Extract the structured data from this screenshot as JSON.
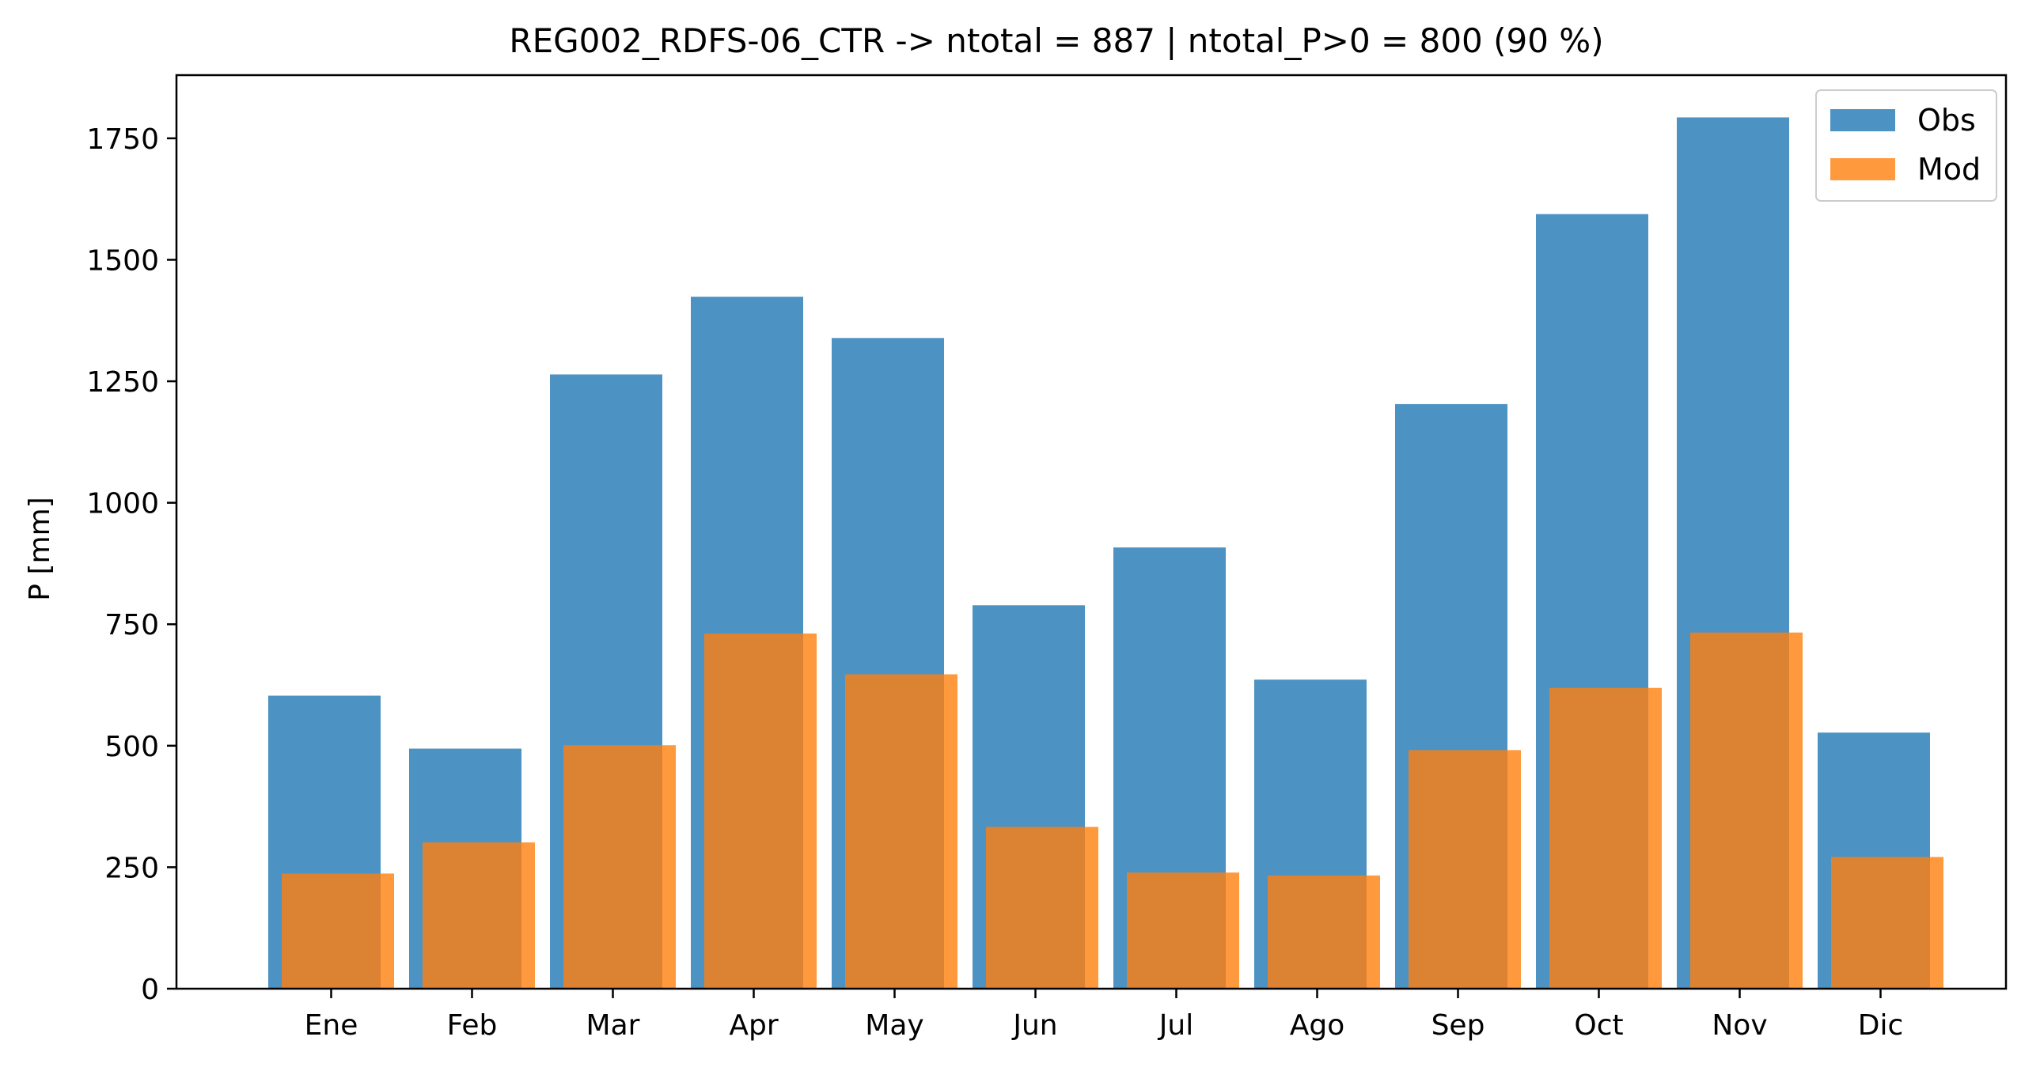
{
  "chart_data": {
    "type": "bar",
    "title": "REG002_RDFS-06_CTR -> ntotal = 887 | ntotal_P>0 = 800 (90 %)",
    "xlabel": "",
    "ylabel": "P [mm]",
    "categories": [
      "Ene",
      "Feb",
      "Mar",
      "Apr",
      "May",
      "Jun",
      "Jul",
      "Ago",
      "Sep",
      "Oct",
      "Nov",
      "Dic"
    ],
    "ylim": [
      0,
      1880
    ],
    "yticks": [
      0,
      250,
      500,
      750,
      1000,
      1250,
      1500,
      1750
    ],
    "grid": false,
    "legend": "top-right",
    "series": [
      {
        "name": "Obs",
        "color": "#1f77b4",
        "opacity": 0.8,
        "values": [
          603,
          494,
          1264,
          1424,
          1339,
          789,
          908,
          636,
          1203,
          1594,
          1793,
          527
        ]
      },
      {
        "name": "Mod",
        "color": "#ff7f0e",
        "opacity": 0.8,
        "values": [
          237,
          301,
          501,
          731,
          647,
          333,
          239,
          233,
          491,
          619,
          733,
          271
        ]
      }
    ]
  }
}
